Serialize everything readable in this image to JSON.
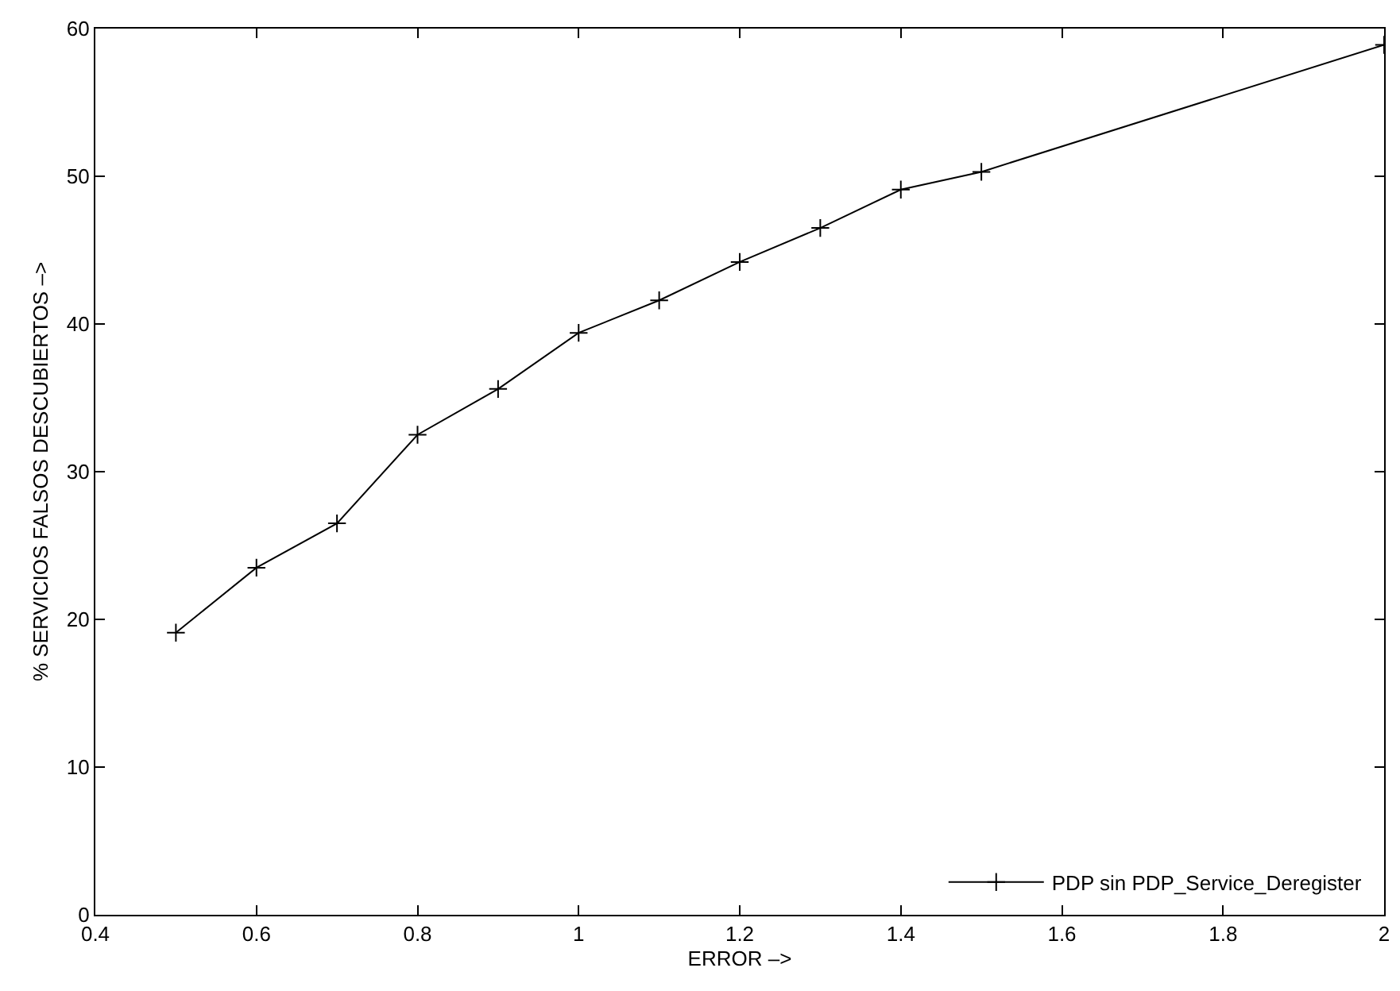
{
  "chart_data": {
    "type": "line",
    "xlabel": "ERROR –>",
    "ylabel": "% SERVICIOS FALSOS DESCUBIERTOS –>",
    "x": [
      0.5,
      0.6,
      0.7,
      0.8,
      0.9,
      1.0,
      1.1,
      1.2,
      1.3,
      1.4,
      1.5,
      2.0
    ],
    "series": [
      {
        "name": "PDP sin PDP_Service_Deregister",
        "color": "#000000",
        "values": [
          19.1,
          23.5,
          26.5,
          32.5,
          35.6,
          39.4,
          41.6,
          44.2,
          46.5,
          49.1,
          50.3,
          58.9
        ]
      }
    ],
    "xlim": [
      0.4,
      2
    ],
    "xticks": [
      0.4,
      0.6,
      0.8,
      1,
      1.2,
      1.4,
      1.6,
      1.8,
      2
    ],
    "ylim": [
      0,
      60
    ],
    "yticks": [
      0,
      10,
      20,
      30,
      40,
      50,
      60
    ],
    "legend": "bottom right",
    "marker": "cross",
    "line_style": "solid"
  }
}
